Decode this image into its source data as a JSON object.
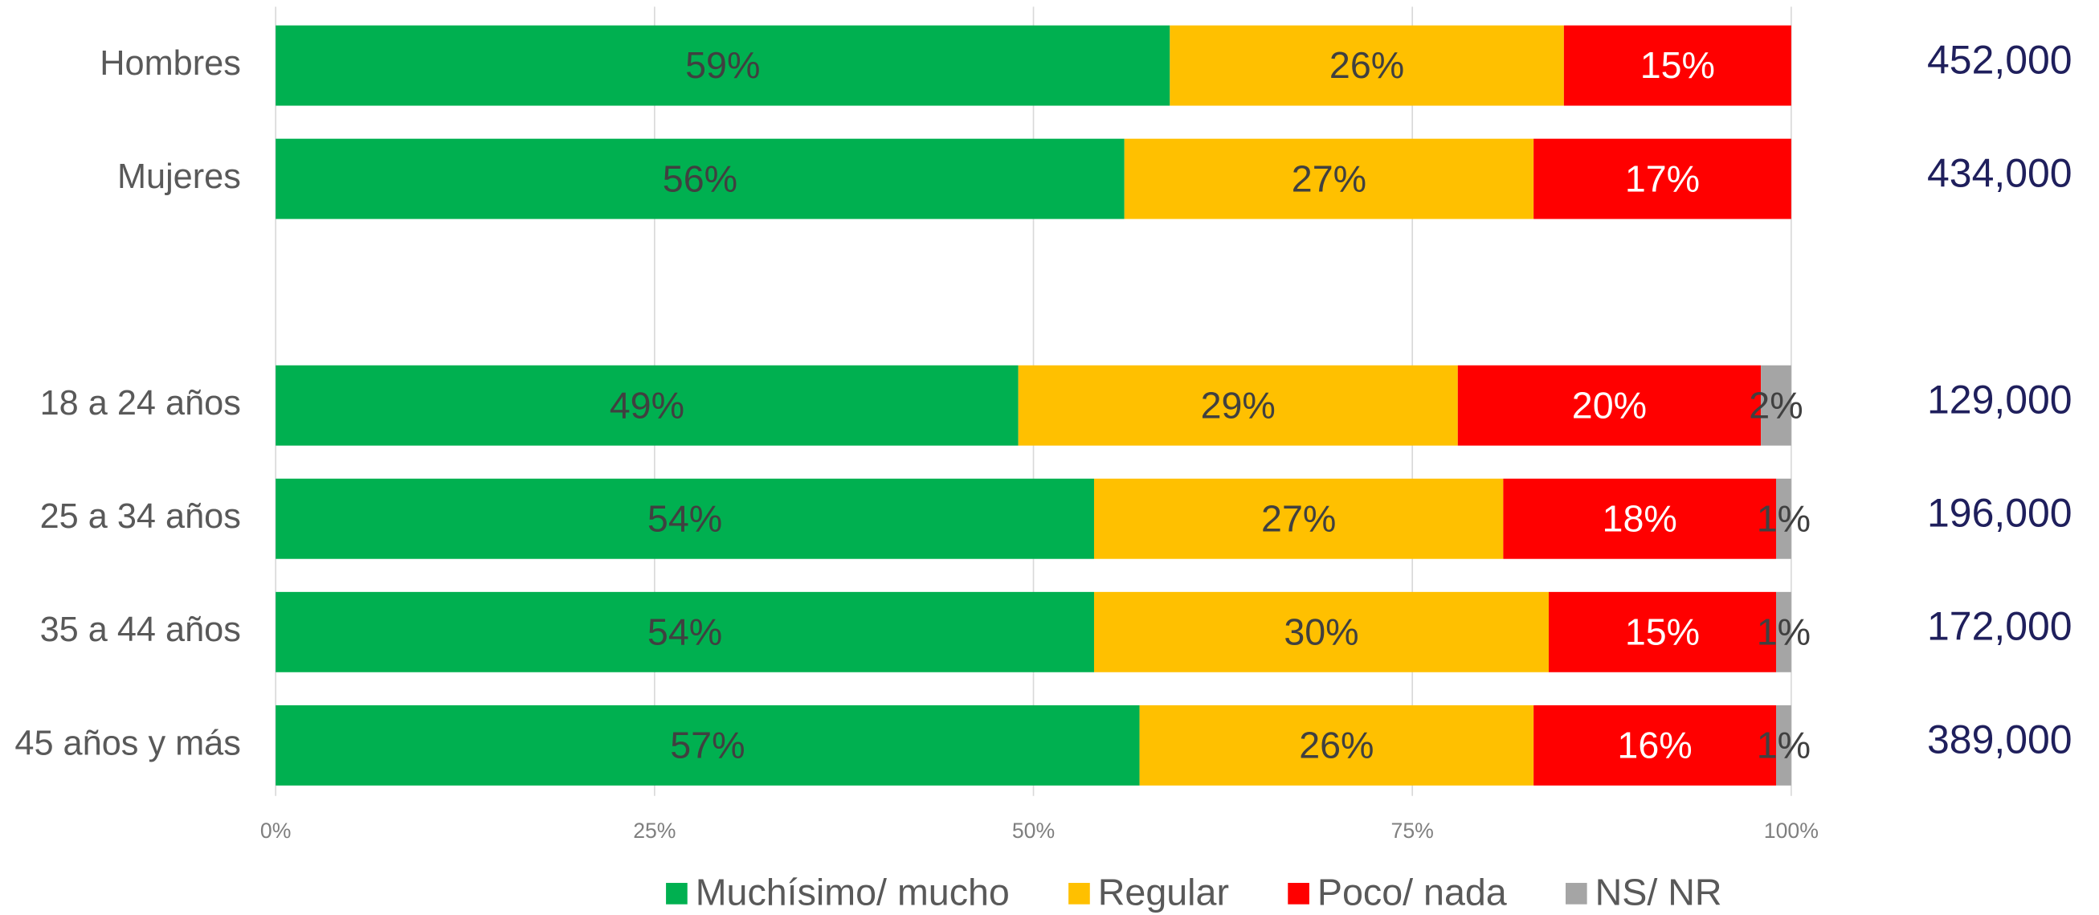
{
  "chart_data": {
    "type": "stacked-bar-horizontal",
    "categories": [
      "Hombres",
      "Mujeres",
      null,
      "18 a 24 años",
      "25 a 34 años",
      "35 a 44 años",
      "45 años y más"
    ],
    "series": [
      {
        "name": "Muchísimo/ mucho",
        "color": "#00b050",
        "label_color": "#404040",
        "values": [
          59,
          56,
          null,
          49,
          54,
          54,
          57
        ],
        "value_labels": [
          "59%",
          "56%",
          null,
          "49%",
          "54%",
          "54%",
          "57%"
        ]
      },
      {
        "name": "Regular",
        "color": "#ffc000",
        "label_color": "#404040",
        "values": [
          26,
          27,
          null,
          29,
          27,
          30,
          26
        ],
        "value_labels": [
          "26%",
          "27%",
          null,
          "29%",
          "27%",
          "30%",
          "26%"
        ]
      },
      {
        "name": "Poco/ nada",
        "color": "#ff0000",
        "label_color": "#ffffff",
        "values": [
          15,
          17,
          null,
          20,
          18,
          15,
          16
        ],
        "value_labels": [
          "15%",
          "17%",
          null,
          "20%",
          "18%",
          "15%",
          "16%"
        ]
      },
      {
        "name": "NS/ NR",
        "color": "#a5a5a5",
        "label_color": "#404040",
        "values": [
          null,
          null,
          null,
          2,
          1,
          1,
          1
        ],
        "value_labels": [
          null,
          null,
          null,
          "2%",
          "1%",
          "1%",
          "1%"
        ]
      }
    ],
    "totals": {
      "values": [
        452000,
        434000,
        null,
        129000,
        196000,
        172000,
        389000
      ],
      "value_labels": [
        "452,000",
        "434,000",
        null,
        "129,000",
        "196,000",
        "172,000",
        "389,000"
      ]
    },
    "xlim": [
      0,
      100
    ],
    "xticks": [
      {
        "value": 0,
        "label": "0%"
      },
      {
        "value": 25,
        "label": "25%"
      },
      {
        "value": 50,
        "label": "50%"
      },
      {
        "value": 75,
        "label": "75%"
      },
      {
        "value": 100,
        "label": "100%"
      }
    ],
    "grid": true,
    "legend": "bottom"
  }
}
